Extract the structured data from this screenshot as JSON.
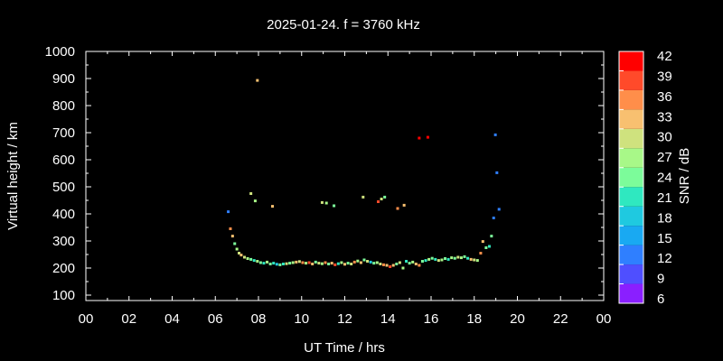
{
  "chart_data": {
    "type": "scatter",
    "title": "2025-01-24. f = 3760 kHz",
    "xlabel": "UT Time / hrs",
    "ylabel": "Virtual height / km",
    "colorbar_label": "SNR / dB",
    "xlim": [
      0,
      24
    ],
    "ylim": [
      80,
      1000
    ],
    "x_ticks": [
      "00",
      "02",
      "04",
      "06",
      "08",
      "10",
      "12",
      "14",
      "16",
      "18",
      "20",
      "22",
      "00"
    ],
    "y_ticks": [
      100,
      200,
      300,
      400,
      500,
      600,
      700,
      800,
      900,
      1000
    ],
    "colorbar_ticks": [
      6,
      9,
      12,
      15,
      18,
      21,
      24,
      27,
      30,
      33,
      36,
      39,
      42
    ],
    "colorbar_colors": [
      "#8a1fff",
      "#4f4fff",
      "#2f7fff",
      "#19a9f2",
      "#1fc9e0",
      "#2fe8c0",
      "#7cfc9a",
      "#a8f888",
      "#cfe27e",
      "#f8c070",
      "#ff8e4a",
      "#ff4a2a",
      "#ff0000"
    ],
    "points": [
      {
        "x": 6.6,
        "y": 408,
        "snr": 12
      },
      {
        "x": 6.7,
        "y": 345,
        "snr": 36
      },
      {
        "x": 6.8,
        "y": 318,
        "snr": 33
      },
      {
        "x": 6.9,
        "y": 290,
        "snr": 24
      },
      {
        "x": 7.0,
        "y": 270,
        "snr": 27
      },
      {
        "x": 7.1,
        "y": 255,
        "snr": 30
      },
      {
        "x": 7.2,
        "y": 248,
        "snr": 33
      },
      {
        "x": 7.35,
        "y": 240,
        "snr": 30
      },
      {
        "x": 7.5,
        "y": 235,
        "snr": 27
      },
      {
        "x": 7.65,
        "y": 232,
        "snr": 24
      },
      {
        "x": 7.8,
        "y": 228,
        "snr": 21
      },
      {
        "x": 7.95,
        "y": 225,
        "snr": 27
      },
      {
        "x": 8.1,
        "y": 220,
        "snr": 24
      },
      {
        "x": 8.25,
        "y": 218,
        "snr": 21
      },
      {
        "x": 8.4,
        "y": 222,
        "snr": 27
      },
      {
        "x": 8.55,
        "y": 215,
        "snr": 24
      },
      {
        "x": 8.7,
        "y": 218,
        "snr": 21
      },
      {
        "x": 8.85,
        "y": 214,
        "snr": 18
      },
      {
        "x": 9.0,
        "y": 212,
        "snr": 24
      },
      {
        "x": 9.15,
        "y": 215,
        "snr": 21
      },
      {
        "x": 9.3,
        "y": 216,
        "snr": 30
      },
      {
        "x": 9.45,
        "y": 218,
        "snr": 24
      },
      {
        "x": 9.6,
        "y": 220,
        "snr": 27
      },
      {
        "x": 9.75,
        "y": 222,
        "snr": 33
      },
      {
        "x": 9.9,
        "y": 224,
        "snr": 30
      },
      {
        "x": 10.05,
        "y": 220,
        "snr": 36
      },
      {
        "x": 10.2,
        "y": 218,
        "snr": 27
      },
      {
        "x": 10.35,
        "y": 220,
        "snr": 39
      },
      {
        "x": 10.5,
        "y": 215,
        "snr": 33
      },
      {
        "x": 10.65,
        "y": 222,
        "snr": 24
      },
      {
        "x": 10.8,
        "y": 218,
        "snr": 30
      },
      {
        "x": 10.95,
        "y": 216,
        "snr": 27
      },
      {
        "x": 11.1,
        "y": 220,
        "snr": 36
      },
      {
        "x": 11.25,
        "y": 215,
        "snr": 24
      },
      {
        "x": 11.4,
        "y": 218,
        "snr": 33
      },
      {
        "x": 11.55,
        "y": 212,
        "snr": 39
      },
      {
        "x": 11.7,
        "y": 216,
        "snr": 21
      },
      {
        "x": 11.85,
        "y": 220,
        "snr": 27
      },
      {
        "x": 12.0,
        "y": 214,
        "snr": 33
      },
      {
        "x": 12.15,
        "y": 218,
        "snr": 24
      },
      {
        "x": 12.3,
        "y": 215,
        "snr": 30
      },
      {
        "x": 12.45,
        "y": 222,
        "snr": 36
      },
      {
        "x": 12.6,
        "y": 226,
        "snr": 27
      },
      {
        "x": 12.75,
        "y": 220,
        "snr": 33
      },
      {
        "x": 12.9,
        "y": 230,
        "snr": 24
      },
      {
        "x": 13.05,
        "y": 225,
        "snr": 30
      },
      {
        "x": 13.2,
        "y": 222,
        "snr": 18
      },
      {
        "x": 13.35,
        "y": 218,
        "snr": 24
      },
      {
        "x": 13.5,
        "y": 220,
        "snr": 27
      },
      {
        "x": 13.65,
        "y": 215,
        "snr": 30
      },
      {
        "x": 13.8,
        "y": 212,
        "snr": 36
      },
      {
        "x": 13.95,
        "y": 210,
        "snr": 33
      },
      {
        "x": 14.1,
        "y": 205,
        "snr": 39
      },
      {
        "x": 14.25,
        "y": 210,
        "snr": 33
      },
      {
        "x": 14.4,
        "y": 215,
        "snr": 24
      },
      {
        "x": 14.55,
        "y": 220,
        "snr": 30
      },
      {
        "x": 14.7,
        "y": 200,
        "snr": 27
      },
      {
        "x": 14.85,
        "y": 225,
        "snr": 21
      },
      {
        "x": 15.0,
        "y": 218,
        "snr": 24
      },
      {
        "x": 15.15,
        "y": 222,
        "snr": 27
      },
      {
        "x": 15.3,
        "y": 215,
        "snr": 33
      },
      {
        "x": 15.45,
        "y": 210,
        "snr": 36
      },
      {
        "x": 15.6,
        "y": 225,
        "snr": 24
      },
      {
        "x": 15.75,
        "y": 228,
        "snr": 21
      },
      {
        "x": 15.9,
        "y": 232,
        "snr": 27
      },
      {
        "x": 16.05,
        "y": 236,
        "snr": 24
      },
      {
        "x": 16.2,
        "y": 232,
        "snr": 21
      },
      {
        "x": 16.35,
        "y": 228,
        "snr": 30
      },
      {
        "x": 16.5,
        "y": 230,
        "snr": 27
      },
      {
        "x": 16.65,
        "y": 235,
        "snr": 24
      },
      {
        "x": 16.8,
        "y": 232,
        "snr": 21
      },
      {
        "x": 16.95,
        "y": 238,
        "snr": 27
      },
      {
        "x": 17.1,
        "y": 236,
        "snr": 24
      },
      {
        "x": 17.25,
        "y": 240,
        "snr": 30
      },
      {
        "x": 17.4,
        "y": 238,
        "snr": 27
      },
      {
        "x": 17.55,
        "y": 242,
        "snr": 24
      },
      {
        "x": 17.7,
        "y": 236,
        "snr": 21
      },
      {
        "x": 17.85,
        "y": 232,
        "snr": 33
      },
      {
        "x": 18.0,
        "y": 230,
        "snr": 30
      },
      {
        "x": 18.15,
        "y": 228,
        "snr": 27
      },
      {
        "x": 18.3,
        "y": 255,
        "snr": 36
      },
      {
        "x": 18.4,
        "y": 298,
        "snr": 33
      },
      {
        "x": 18.55,
        "y": 275,
        "snr": 24
      },
      {
        "x": 18.7,
        "y": 280,
        "snr": 21
      },
      {
        "x": 18.8,
        "y": 318,
        "snr": 24
      },
      {
        "x": 18.9,
        "y": 385,
        "snr": 12
      },
      {
        "x": 18.98,
        "y": 692,
        "snr": 12
      },
      {
        "x": 19.05,
        "y": 552,
        "snr": 12
      },
      {
        "x": 19.15,
        "y": 417,
        "snr": 12
      },
      {
        "x": 7.95,
        "y": 893,
        "snr": 33
      },
      {
        "x": 7.65,
        "y": 475,
        "snr": 30
      },
      {
        "x": 7.85,
        "y": 448,
        "snr": 27
      },
      {
        "x": 8.65,
        "y": 428,
        "snr": 33
      },
      {
        "x": 10.95,
        "y": 442,
        "snr": 30
      },
      {
        "x": 11.15,
        "y": 440,
        "snr": 27
      },
      {
        "x": 11.5,
        "y": 430,
        "snr": 24
      },
      {
        "x": 12.85,
        "y": 462,
        "snr": 30
      },
      {
        "x": 13.55,
        "y": 445,
        "snr": 39
      },
      {
        "x": 13.7,
        "y": 455,
        "snr": 30
      },
      {
        "x": 13.85,
        "y": 462,
        "snr": 24
      },
      {
        "x": 14.45,
        "y": 420,
        "snr": 36
      },
      {
        "x": 14.75,
        "y": 432,
        "snr": 33
      },
      {
        "x": 15.45,
        "y": 680,
        "snr": 42
      },
      {
        "x": 15.85,
        "y": 683,
        "snr": 42
      }
    ]
  }
}
